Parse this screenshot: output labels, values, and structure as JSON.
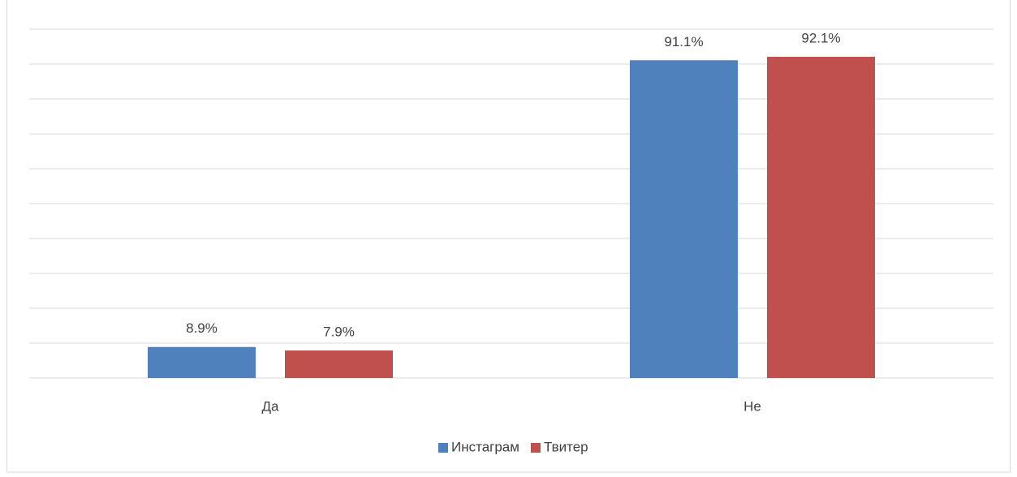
{
  "chart_data": {
    "type": "bar",
    "categories": [
      "Да",
      "Не"
    ],
    "series": [
      {
        "name": "Инстаграм",
        "color": "#4f81bd",
        "values": [
          8.9,
          91.1
        ],
        "value_labels": [
          "8.9%",
          "91.1%"
        ]
      },
      {
        "name": "Твитер",
        "color": "#c0504d",
        "values": [
          7.9,
          92.1
        ],
        "value_labels": [
          "7.9%",
          "92.1%"
        ]
      }
    ],
    "ylim": [
      0,
      100
    ],
    "yticks": [
      0,
      10,
      20,
      30,
      40,
      50,
      60,
      70,
      80,
      90,
      100
    ],
    "grid": true,
    "show_tick_labels": false,
    "legend": "bottom"
  }
}
